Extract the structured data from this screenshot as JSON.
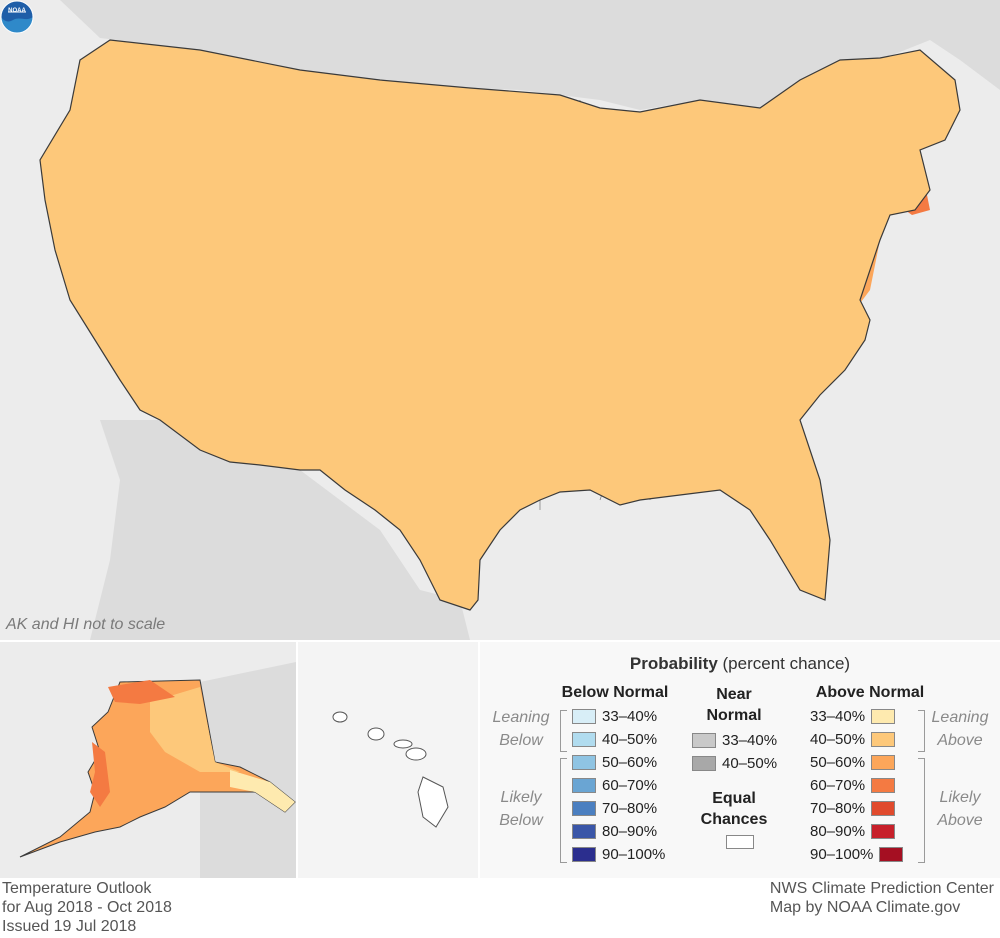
{
  "map": {
    "scale_note": "AK and HI not to scale",
    "logo_icon": "noaa-logo"
  },
  "legend": {
    "title_bold": "Probability",
    "title_rest": " (percent chance)",
    "below": {
      "heading": "Below Normal",
      "leaning_label": [
        "Leaning",
        "Below"
      ],
      "likely_label": [
        "Likely",
        "Below"
      ],
      "ranges": [
        "33–40%",
        "40–50%",
        "50–60%",
        "60–70%",
        "70–80%",
        "80–90%",
        "90–100%"
      ],
      "colors": [
        "#d8eef7",
        "#b1dcef",
        "#8fc4e3",
        "#6aa5d3",
        "#4b7fc0",
        "#3a56a8",
        "#2b2e8e"
      ]
    },
    "near": {
      "heading": [
        "Near",
        "Normal"
      ],
      "ranges": [
        "33–40%",
        "40–50%"
      ],
      "colors": [
        "#c9c9c9",
        "#a8a8a8"
      ]
    },
    "equal": {
      "heading": [
        "Equal",
        "Chances"
      ],
      "color": "#ffffff"
    },
    "above": {
      "heading": "Above Normal",
      "leaning_label": [
        "Leaning",
        "Above"
      ],
      "likely_label": [
        "Likely",
        "Above"
      ],
      "ranges": [
        "33–40%",
        "40–50%",
        "50–60%",
        "60–70%",
        "70–80%",
        "80–90%",
        "90–100%"
      ],
      "colors": [
        "#feeaaf",
        "#fdc87a",
        "#fca65a",
        "#f47a42",
        "#e04a2d",
        "#c7202a",
        "#a50f22"
      ]
    }
  },
  "footer": {
    "left": [
      "Temperature Outlook",
      "for Aug 2018 - Oct 2018",
      "Issued 19 Jul 2018"
    ],
    "right": [
      "NWS Climate Prediction Center",
      "Map by NOAA Climate.gov"
    ]
  }
}
